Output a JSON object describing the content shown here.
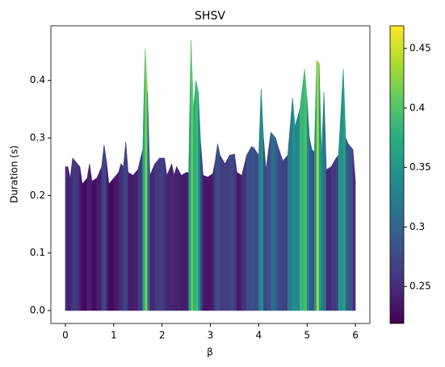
{
  "chart_data": {
    "type": "area",
    "title": "SHSV",
    "xlabel": "β",
    "ylabel": "Duration (s)",
    "x": [
      0,
      0.05,
      0.1,
      0.15,
      0.25,
      0.3,
      0.35,
      0.45,
      0.5,
      0.55,
      0.65,
      0.75,
      0.8,
      0.85,
      0.9,
      1.0,
      1.1,
      1.15,
      1.2,
      1.25,
      1.3,
      1.4,
      1.5,
      1.6,
      1.65,
      1.7,
      1.75,
      1.85,
      1.95,
      2.05,
      2.1,
      2.2,
      2.25,
      2.3,
      2.4,
      2.5,
      2.55,
      2.6,
      2.65,
      2.7,
      2.75,
      2.8,
      2.85,
      2.95,
      3.05,
      3.1,
      3.15,
      3.2,
      3.3,
      3.4,
      3.5,
      3.55,
      3.65,
      3.75,
      3.85,
      3.9,
      4.0,
      4.05,
      4.1,
      4.15,
      4.25,
      4.35,
      4.4,
      4.5,
      4.6,
      4.7,
      4.75,
      4.85,
      4.95,
      5.0,
      5.05,
      5.1,
      5.15,
      5.2,
      5.25,
      5.3,
      5.35,
      5.4,
      5.5,
      5.6,
      5.65,
      5.75,
      5.8,
      5.85,
      5.95,
      6.0
    ],
    "values": [
      0.25,
      0.25,
      0.23,
      0.265,
      0.255,
      0.25,
      0.22,
      0.23,
      0.255,
      0.225,
      0.23,
      0.25,
      0.288,
      0.26,
      0.22,
      0.23,
      0.24,
      0.255,
      0.25,
      0.293,
      0.24,
      0.235,
      0.245,
      0.28,
      0.455,
      0.38,
      0.235,
      0.255,
      0.265,
      0.265,
      0.235,
      0.255,
      0.235,
      0.25,
      0.235,
      0.24,
      0.24,
      0.47,
      0.35,
      0.4,
      0.38,
      0.29,
      0.235,
      0.232,
      0.238,
      0.26,
      0.29,
      0.27,
      0.255,
      0.27,
      0.272,
      0.24,
      0.235,
      0.27,
      0.285,
      0.283,
      0.27,
      0.385,
      0.3,
      0.245,
      0.31,
      0.3,
      0.285,
      0.26,
      0.27,
      0.37,
      0.32,
      0.35,
      0.42,
      0.37,
      0.3,
      0.28,
      0.275,
      0.435,
      0.43,
      0.27,
      0.38,
      0.245,
      0.25,
      0.265,
      0.27,
      0.42,
      0.3,
      0.29,
      0.28,
      0.225
    ],
    "xlim": [
      -0.3,
      6.3
    ],
    "ylim": [
      -0.0225,
      0.495
    ],
    "xticks": [
      0,
      1,
      2,
      3,
      4,
      5,
      6
    ],
    "yticks": [
      {
        "value": 0,
        "label": "0.0"
      },
      0.1,
      0.2,
      0.3,
      0.4
    ],
    "colorbar": {
      "colormap": "viridis",
      "clim": [
        0.219,
        0.469
      ],
      "ticks": [
        0.25,
        0.3,
        0.35,
        0.4,
        0.45
      ]
    }
  }
}
